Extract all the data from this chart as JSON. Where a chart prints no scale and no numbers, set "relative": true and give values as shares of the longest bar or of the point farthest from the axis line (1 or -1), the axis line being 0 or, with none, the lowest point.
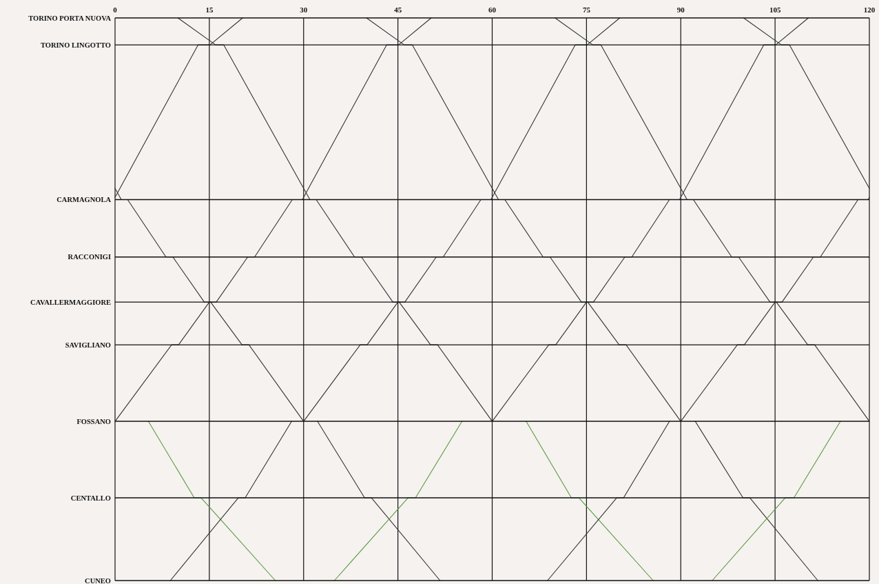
{
  "chart_data": {
    "type": "line",
    "relative": true,
    "xlim": [
      0,
      120
    ],
    "xticks": [
      0,
      15,
      30,
      45,
      60,
      75,
      90,
      105,
      120
    ],
    "grid": "x",
    "ref_lines": [
      {
        "axis": "y",
        "value": 1,
        "label": "TORINO PORTA NUOVA"
      },
      {
        "axis": "y",
        "value": 0.952,
        "label": "TORINO LINGOTTO"
      },
      {
        "axis": "y",
        "value": 0.677,
        "label": "CARMAGNOLA"
      },
      {
        "axis": "y",
        "value": 0.575,
        "label": "RACCONIGI"
      },
      {
        "axis": "y",
        "value": 0.495,
        "label": "CAVALLERMAGGIORE"
      },
      {
        "axis": "y",
        "value": 0.419,
        "label": "SAVIGLIANO"
      },
      {
        "axis": "y",
        "value": 0.283,
        "label": "FOSSANO"
      },
      {
        "axis": "y",
        "value": 0.147,
        "label": "CENTALLO"
      },
      {
        "axis": "y",
        "value": 0,
        "label": "CUNEO"
      }
    ],
    "series": [
      {
        "color": "#333333",
        "x": [
          0,
          1,
          2,
          8.1,
          9.2,
          14.2,
          15.2,
          20.2,
          21.3,
          30
        ],
        "values": [
          0.697,
          0.677,
          0.677,
          0.575,
          0.575,
          0.495,
          0.495,
          0.419,
          0.419,
          0.283
        ]
      },
      {
        "color": "#333333",
        "x": [
          10,
          16,
          17.3,
          31,
          32,
          38.1,
          39.2,
          44.2,
          45.2,
          50.2,
          51.3,
          60
        ],
        "values": [
          1,
          0.952,
          0.952,
          0.677,
          0.677,
          0.575,
          0.575,
          0.495,
          0.495,
          0.419,
          0.419,
          0.283
        ]
      },
      {
        "color": "#333333",
        "x": [
          40,
          46,
          47.3,
          61,
          62,
          68.1,
          69.2,
          74.2,
          75.2,
          80.2,
          81.3,
          90
        ],
        "values": [
          1,
          0.952,
          0.952,
          0.677,
          0.677,
          0.575,
          0.575,
          0.495,
          0.495,
          0.419,
          0.419,
          0.283
        ]
      },
      {
        "color": "#333333",
        "x": [
          70,
          76,
          77.3,
          91,
          92,
          98.1,
          99.2,
          104.2,
          105.2,
          110.2,
          111.3,
          120
        ],
        "values": [
          1,
          0.952,
          0.952,
          0.677,
          0.677,
          0.575,
          0.575,
          0.495,
          0.495,
          0.419,
          0.419,
          0.283
        ]
      },
      {
        "color": "#333333",
        "x": [
          100,
          106,
          107.3,
          120
        ],
        "values": [
          1,
          0.952,
          0.952,
          0.697
        ]
      },
      {
        "color": "#333333",
        "x": [
          0,
          13.2,
          15.1,
          20.3
        ],
        "values": [
          0.681,
          0.952,
          0.952,
          1
        ]
      },
      {
        "color": "#333333",
        "x": [
          0,
          9,
          10.1,
          15,
          16.1,
          21.1,
          22.2,
          28.2,
          29.8,
          43.2,
          45.1,
          50.3
        ],
        "values": [
          0.283,
          0.419,
          0.419,
          0.495,
          0.495,
          0.575,
          0.575,
          0.677,
          0.677,
          0.952,
          0.952,
          1
        ]
      },
      {
        "color": "#333333",
        "x": [
          30,
          39,
          40.1,
          45,
          46.1,
          51.1,
          52.2,
          58.2,
          59.8,
          73.2,
          75.1,
          80.3
        ],
        "values": [
          0.283,
          0.419,
          0.419,
          0.495,
          0.495,
          0.575,
          0.575,
          0.677,
          0.677,
          0.952,
          0.952,
          1
        ]
      },
      {
        "color": "#333333",
        "x": [
          60,
          69,
          70.1,
          75,
          76.1,
          81.1,
          82.2,
          88.2,
          89.8,
          103.2,
          105.1,
          110.3
        ],
        "values": [
          0.283,
          0.419,
          0.419,
          0.495,
          0.495,
          0.575,
          0.575,
          0.677,
          0.677,
          0.952,
          0.952,
          1
        ]
      },
      {
        "color": "#333333",
        "x": [
          90,
          99,
          100.1,
          105,
          106.1,
          111.1,
          112.2,
          118.2,
          119.8,
          120
        ],
        "values": [
          0.283,
          0.419,
          0.419,
          0.495,
          0.495,
          0.575,
          0.575,
          0.677,
          0.677,
          0.681
        ]
      },
      {
        "color": "#5a9a3c",
        "x": [
          5.3,
          12.6,
          13.7,
          25.5
        ],
        "values": [
          0.283,
          0.147,
          0.147,
          0
        ]
      },
      {
        "color": "#5a9a3c",
        "x": [
          65.4,
          72.6,
          73.8,
          85.6
        ],
        "values": [
          0.283,
          0.147,
          0.147,
          0
        ]
      },
      {
        "color": "#333333",
        "x": [
          32.2,
          39.7,
          40.8,
          51.7
        ],
        "values": [
          0.283,
          0.147,
          0.147,
          0
        ]
      },
      {
        "color": "#333333",
        "x": [
          92.3,
          99.9,
          101,
          111.8
        ],
        "values": [
          0.283,
          0.147,
          0.147,
          0
        ]
      },
      {
        "color": "#333333",
        "x": [
          8.8,
          19.6,
          20.7,
          28.1
        ],
        "values": [
          0,
          0.147,
          0.147,
          0.283
        ]
      },
      {
        "color": "#333333",
        "x": [
          68.8,
          79.8,
          80.9,
          88.2
        ],
        "values": [
          0,
          0.147,
          0.147,
          0.283
        ]
      },
      {
        "color": "#5a9a3c",
        "x": [
          34.9,
          46.6,
          47.8,
          55.2
        ],
        "values": [
          0,
          0.147,
          0.147,
          0.283
        ]
      },
      {
        "color": "#5a9a3c",
        "x": [
          95,
          106.6,
          108,
          115.4
        ],
        "values": [
          0,
          0.147,
          0.147,
          0.283
        ]
      }
    ]
  }
}
